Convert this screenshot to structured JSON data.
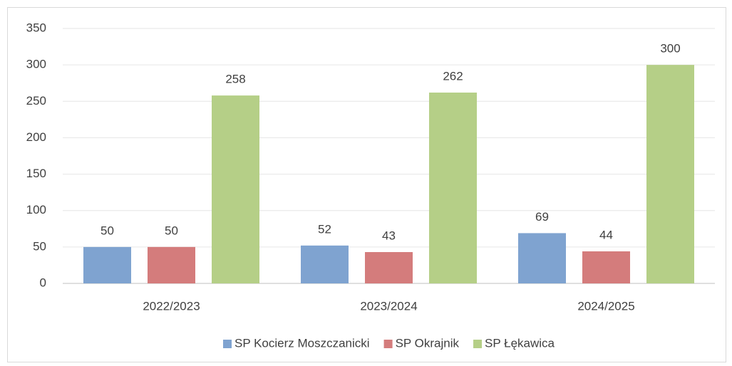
{
  "chart_data": {
    "type": "bar",
    "categories": [
      "2022/2023",
      "2023/2024",
      "2024/2025"
    ],
    "series": [
      {
        "name": "SP Kocierz Moszczanicki",
        "color": "#7fa3d0",
        "values": [
          50,
          52,
          69
        ]
      },
      {
        "name": "SP Okrajnik",
        "color": "#d47c7c",
        "values": [
          50,
          43,
          44
        ]
      },
      {
        "name": "SP Łękawica",
        "color": "#b5cf87",
        "values": [
          258,
          262,
          300
        ]
      }
    ],
    "ylim": [
      0,
      350
    ],
    "yticks": [
      0,
      50,
      100,
      150,
      200,
      250,
      300,
      350
    ],
    "grid": true,
    "legend": "bottom"
  }
}
